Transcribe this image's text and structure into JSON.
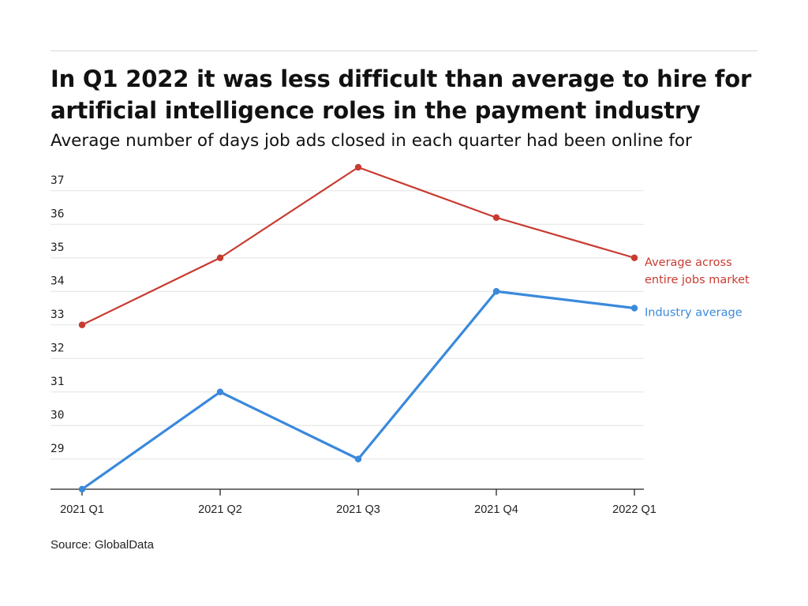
{
  "header": {
    "title": "In Q1 2022 it was less difficult than average to hire for artificial intelligence roles in the payment industry",
    "subtitle": "Average number of days job ads closed in each quarter had been online for"
  },
  "footer": {
    "source": "Source: GlobalData"
  },
  "colors": {
    "market": "#c83b31",
    "industry": "#3a89dc",
    "grid": "#e3e3e3",
    "axis": "#222222"
  },
  "chart_data": {
    "type": "line",
    "title": "In Q1 2022 it was less difficult than average to hire for artificial intelligence roles in the payment industry",
    "subtitle": "Average number of days job ads closed in each quarter had been online for",
    "xlabel": "",
    "ylabel": "",
    "categories": [
      "2021 Q1",
      "2021 Q2",
      "2021 Q3",
      "2021 Q4",
      "2022 Q1"
    ],
    "y_ticks": [
      29,
      30,
      31,
      32,
      33,
      34,
      35,
      36,
      37
    ],
    "ylim": [
      28.1,
      37.7
    ],
    "grid": true,
    "legend": "direct labels at line ends (right)",
    "series": [
      {
        "name": "Average across entire jobs market",
        "label_lines": [
          "Average across",
          "entire jobs market"
        ],
        "values": [
          33,
          35,
          37.7,
          36.2,
          35
        ],
        "color": "#c83b31"
      },
      {
        "name": "Industry average",
        "label_lines": [
          "Industry average"
        ],
        "values": [
          28.1,
          31,
          29,
          34,
          33.5
        ],
        "color": "#3a89dc"
      }
    ]
  }
}
